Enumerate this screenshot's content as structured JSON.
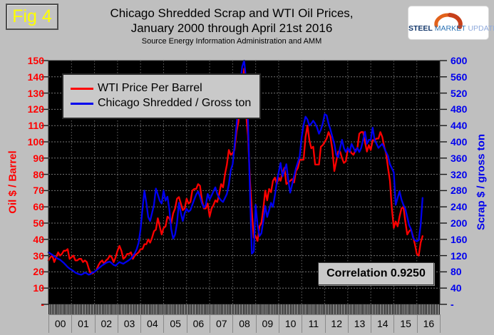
{
  "fig_label": "Fig 4",
  "title": {
    "line1": "Chicago Shredded Scrap and WTI Oil Prices,",
    "line2": "January 2000 through April 21st 2016",
    "source": "Source Energy Information Administration and AMM"
  },
  "logo": {
    "steel": "STEEL",
    "market": "MARKET",
    "update": "UPDATE",
    "arc_color": "#e2621b"
  },
  "legend": [
    {
      "label": "WTI Price Per Barrel",
      "color": "#ff0000"
    },
    {
      "label": "Chicago Shredded / Gross ton",
      "color": "#0000ee"
    }
  ],
  "annotation": "Correlation 0.9250",
  "axes": {
    "left": {
      "title": "Oil $ / Barrel",
      "color": "#ff0000",
      "ticks": [
        "150",
        "140",
        "130",
        "120",
        "110",
        "100",
        "90",
        "80",
        "70",
        "60",
        "50",
        "40",
        "30",
        "20",
        "10",
        "-"
      ]
    },
    "right": {
      "title": "Scrap $ / gross ton",
      "color": "#0000ee",
      "ticks": [
        "600",
        "560",
        "520",
        "480",
        "440",
        "400",
        "360",
        "320",
        "280",
        "240",
        "200",
        "160",
        "120",
        "80",
        "40",
        "-"
      ]
    },
    "x": {
      "labels": [
        "00",
        "01",
        "02",
        "03",
        "04",
        "05",
        "06",
        "07",
        "08",
        "09",
        "10",
        "11",
        "12",
        "13",
        "14",
        "15",
        "16"
      ]
    }
  },
  "chart_data": {
    "type": "line",
    "title": "Chicago Shredded Scrap and WTI Oil Prices, January 2000 through April 21st 2016",
    "x_start": "2000-01",
    "x_end": "2016-04",
    "frequency": "monthly",
    "x_axis_span_years": 17,
    "x_tick_labels": [
      "00",
      "01",
      "02",
      "03",
      "04",
      "05",
      "06",
      "07",
      "08",
      "09",
      "10",
      "11",
      "12",
      "13",
      "14",
      "15",
      "16"
    ],
    "left_ylabel": "Oil $ / Barrel",
    "right_ylabel": "Scrap $ / gross ton",
    "left_ylim": [
      0,
      150
    ],
    "right_ylim": [
      0,
      600
    ],
    "grid": true,
    "plot_bg": "#000000",
    "legend_position": "upper-left",
    "annotation": "Correlation 0.9250",
    "series": [
      {
        "name": "WTI Price Per Barrel",
        "color": "#ff0000",
        "axis": "left",
        "values": [
          27,
          29,
          30,
          26,
          29,
          32,
          30,
          31,
          33,
          33,
          34,
          28,
          29,
          30,
          27,
          27,
          28,
          28,
          26,
          27,
          26,
          22,
          19,
          19,
          20,
          21,
          24,
          26,
          27,
          25,
          27,
          28,
          30,
          29,
          26,
          29,
          33,
          36,
          33,
          28,
          29,
          31,
          31,
          32,
          28,
          30,
          31,
          32,
          34,
          34,
          37,
          37,
          40,
          38,
          41,
          45,
          46,
          53,
          48,
          43,
          47,
          48,
          54,
          53,
          50,
          56,
          59,
          65,
          66,
          62,
          58,
          59,
          65,
          62,
          63,
          70,
          71,
          71,
          74,
          73,
          64,
          59,
          59,
          62,
          54,
          59,
          61,
          64,
          63,
          68,
          74,
          72,
          80,
          86,
          95,
          92,
          93,
          95,
          106,
          112,
          125,
          134,
          145,
          117,
          104,
          77,
          57,
          41,
          42,
          39,
          48,
          50,
          59,
          70,
          64,
          71,
          69,
          76,
          78,
          74,
          78,
          76,
          81,
          84,
          74,
          75,
          76,
          77,
          75,
          82,
          84,
          89,
          89,
          89,
          103,
          110,
          101,
          96,
          97,
          86,
          86,
          86,
          97,
          98,
          100,
          102,
          106,
          103,
          95,
          82,
          88,
          94,
          94,
          90,
          87,
          88,
          95,
          95,
          93,
          92,
          95,
          96,
          105,
          106,
          106,
          100,
          94,
          98,
          95,
          101,
          101,
          102,
          102,
          106,
          103,
          97,
          93,
          84,
          76,
          59,
          47,
          51,
          48,
          54,
          59,
          60,
          51,
          43,
          45,
          46,
          42,
          37,
          31,
          30,
          38,
          42
        ]
      },
      {
        "name": "Chicago Shredded / Gross ton",
        "color": "#0000ee",
        "axis": "right",
        "values": [
          128,
          125,
          122,
          118,
          115,
          112,
          110,
          106,
          102,
          97,
          92,
          88,
          85,
          82,
          78,
          76,
          74,
          73,
          75,
          78,
          76,
          73,
          75,
          78,
          80,
          84,
          88,
          92,
          96,
          99,
          102,
          104,
          105,
          101,
          97,
          95,
          100,
          104,
          102,
          100,
          103,
          106,
          109,
          113,
          119,
          126,
          136,
          152,
          185,
          235,
          280,
          250,
          215,
          205,
          225,
          245,
          285,
          270,
          255,
          248,
          280,
          255,
          265,
          235,
          185,
          162,
          172,
          200,
          250,
          225,
          205,
          225,
          235,
          228,
          232,
          245,
          258,
          270,
          278,
          265,
          248,
          238,
          245,
          272,
          258,
          268,
          278,
          288,
          272,
          262,
          256,
          252,
          262,
          272,
          295,
          330,
          345,
          390,
          440,
          490,
          545,
          585,
          600,
          555,
          450,
          280,
          125,
          130,
          245,
          195,
          168,
          175,
          205,
          242,
          215,
          232,
          250,
          240,
          268,
          300,
          325,
          348,
          315,
          330,
          345,
          305,
          275,
          295,
          315,
          335,
          350,
          365,
          412,
          442,
          462,
          455,
          440,
          445,
          452,
          445,
          435,
          420,
          430,
          445,
          468,
          465,
          445,
          430,
          412,
          395,
          368,
          362,
          385,
          405,
          385,
          375,
          385,
          375,
          395,
          385,
          375,
          385,
          375,
          385,
          405,
          425,
          395,
          405,
          405,
          435,
          405,
          395,
          385,
          390,
          395,
          385,
          375,
          365,
          345,
          335,
          325,
          245,
          262,
          278,
          258,
          245,
          235,
          215,
          195,
          185,
          165,
          158,
          155,
          158,
          195,
          262
        ]
      }
    ]
  }
}
